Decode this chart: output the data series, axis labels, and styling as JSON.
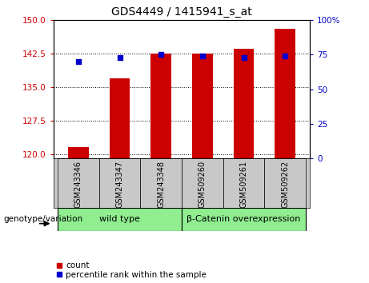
{
  "title": "GDS4449 / 1415941_s_at",
  "categories": [
    "GSM243346",
    "GSM243347",
    "GSM243348",
    "GSM509260",
    "GSM509261",
    "GSM509262"
  ],
  "bar_values": [
    121.5,
    137.0,
    142.5,
    142.5,
    143.5,
    148.0
  ],
  "dot_values": [
    70,
    73,
    75,
    74,
    73,
    74
  ],
  "ylim_left": [
    119,
    150
  ],
  "ylim_right": [
    0,
    100
  ],
  "yticks_left": [
    120,
    127.5,
    135,
    142.5,
    150
  ],
  "yticks_right": [
    0,
    25,
    50,
    75,
    100
  ],
  "bar_color": "#CC0000",
  "dot_color": "#0000CC",
  "bar_width": 0.5,
  "wt_label": "wild type",
  "bc_label": "β-Catenin overexpression",
  "group_color": "#90EE90",
  "xticklabel_bg": "#C8C8C8",
  "group_label_prefix": "genotype/variation",
  "legend_count_label": "count",
  "legend_pct_label": "percentile rank within the sample",
  "left_tick_color": "#CC0000",
  "right_tick_color": "#0000CC"
}
